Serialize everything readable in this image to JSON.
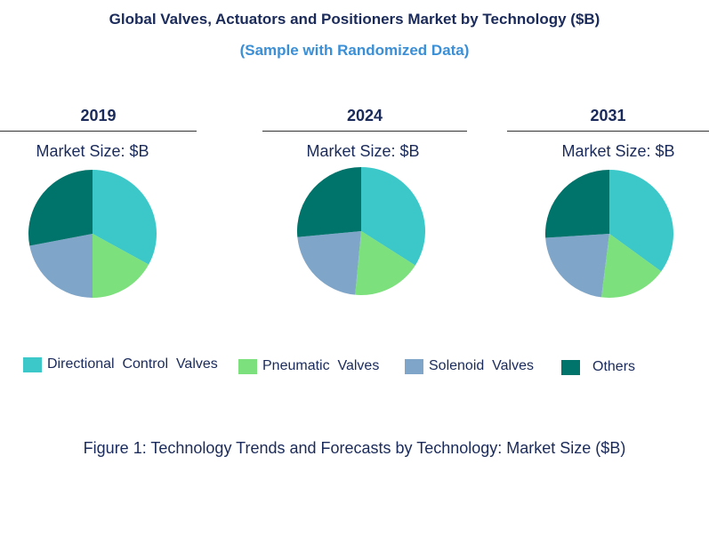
{
  "chart_data": {
    "type": "pie",
    "title": "Global Valves, Actuators and Positioners Market by Technology ($B)",
    "subtitle": "(Sample with Randomized Data)",
    "caption": "Figure 1: Technology Trends and Forecasts by Technology: Market Size ($B)",
    "legend": [
      {
        "label": "Directional  Control  Valves",
        "color": "#3cc8c8"
      },
      {
        "label": "Pneumatic  Valves",
        "color": "#7ce07c"
      },
      {
        "label": "Solenoid  Valves",
        "color": "#7fa6c9"
      },
      {
        "label": "Others",
        "color": "#00736a"
      }
    ],
    "pies": [
      {
        "year": "2019",
        "label": "Market Size: $B",
        "values": [
          33,
          17,
          22,
          28
        ]
      },
      {
        "year": "2024",
        "label": "Market Size: $B",
        "values": [
          34,
          17.5,
          22,
          26.5
        ]
      },
      {
        "year": "2031",
        "label": "Market Size: $B",
        "values": [
          35,
          17,
          22,
          26
        ]
      }
    ]
  }
}
